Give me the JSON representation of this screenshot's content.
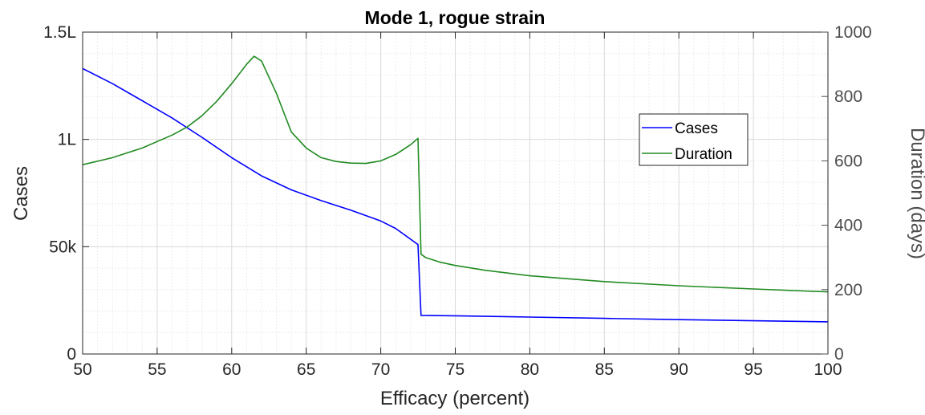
{
  "chart_data": {
    "type": "line",
    "title": "Mode 1, rogue strain",
    "xlabel": "Efficacy (percent)",
    "ylabel_left": "Cases",
    "ylabel_right": "Duration (days)",
    "xlim": [
      50,
      100
    ],
    "ylim_left": [
      0,
      150000
    ],
    "ylim_right": [
      0,
      1000
    ],
    "x_ticks": [
      50,
      55,
      60,
      65,
      70,
      75,
      80,
      85,
      90,
      95,
      100
    ],
    "x_tick_labels": [
      "50",
      "55",
      "60",
      "65",
      "70",
      "75",
      "80",
      "85",
      "90",
      "95",
      "100"
    ],
    "y_left_ticks": [
      0,
      50000,
      100000,
      150000
    ],
    "y_left_tick_labels": [
      "0",
      "50k",
      "1L",
      "1.5L"
    ],
    "y_right_ticks": [
      0,
      200,
      400,
      600,
      800,
      1000
    ],
    "y_right_tick_labels": [
      "0",
      "200",
      "400",
      "600",
      "800",
      "1000"
    ],
    "grid": true,
    "minor_grid": true,
    "legend_position": "upper-right-inner",
    "series": [
      {
        "name": "Cases",
        "axis": "left",
        "color": "#0000ff",
        "x": [
          50,
          52,
          54,
          56,
          58,
          60,
          62,
          64,
          66,
          68,
          70,
          71,
          72,
          72.5,
          72.7,
          75,
          80,
          85,
          90,
          95,
          100
        ],
        "y": [
          133000,
          126000,
          118000,
          110000,
          101000,
          91500,
          83000,
          76500,
          71500,
          67000,
          62000,
          58500,
          53500,
          51000,
          18000,
          17800,
          17200,
          16600,
          16000,
          15500,
          15000
        ]
      },
      {
        "name": "Duration",
        "axis": "right",
        "color": "#228b22",
        "x": [
          50,
          52,
          54,
          56,
          57,
          58,
          59,
          60,
          61,
          61.5,
          62,
          63,
          64,
          65,
          66,
          67,
          68,
          69,
          70,
          71,
          72,
          72.5,
          72.7,
          73,
          74,
          75,
          77,
          80,
          85,
          90,
          95,
          100
        ],
        "y": [
          588,
          610,
          640,
          680,
          705,
          740,
          785,
          840,
          900,
          925,
          910,
          810,
          690,
          640,
          610,
          598,
          593,
          592,
          600,
          620,
          650,
          670,
          310,
          300,
          285,
          275,
          260,
          243,
          225,
          212,
          202,
          193
        ]
      }
    ]
  }
}
